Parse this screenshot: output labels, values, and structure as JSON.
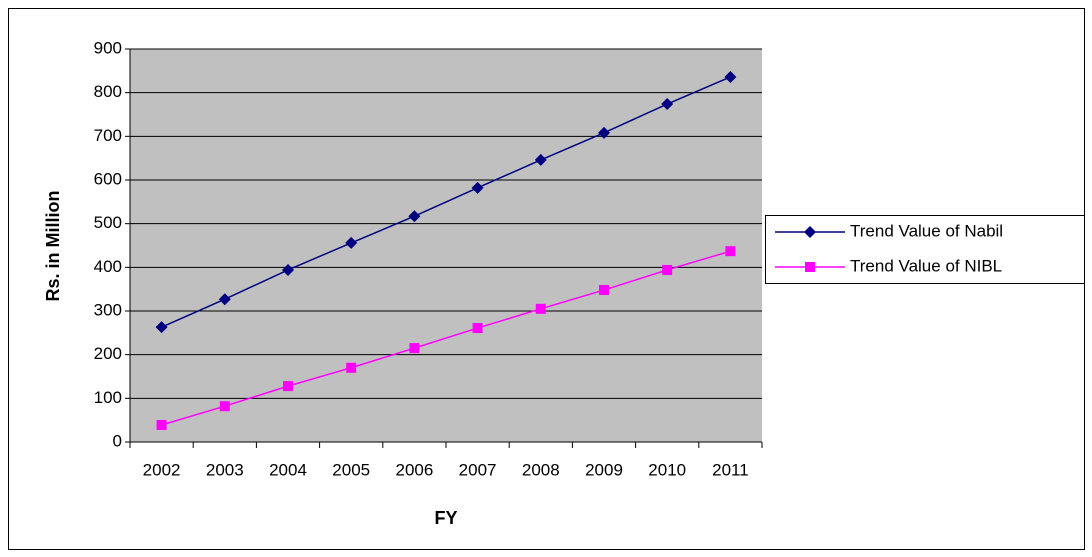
{
  "chart_data": {
    "type": "line",
    "categories": [
      "2002",
      "2003",
      "2004",
      "2005",
      "2006",
      "2007",
      "2008",
      "2009",
      "2010",
      "2011"
    ],
    "series": [
      {
        "name": "Trend Value of Nabil",
        "color": "#000080",
        "marker": "diamond",
        "values": [
          263,
          327,
          394,
          456,
          517,
          582,
          646,
          708,
          774,
          836
        ]
      },
      {
        "name": "Trend Value of NIBL",
        "color": "#ff00ff",
        "marker": "square",
        "values": [
          39,
          82,
          128,
          170,
          215,
          261,
          305,
          348,
          394,
          437
        ]
      }
    ],
    "x_label": "FY",
    "y_label": "Rs. in Million",
    "ylim": [
      0,
      900
    ],
    "yticks": [
      0,
      100,
      200,
      300,
      400,
      500,
      600,
      700,
      800,
      900
    ],
    "grid": true,
    "legend": "right",
    "plot_background": "#c0c0c0"
  }
}
